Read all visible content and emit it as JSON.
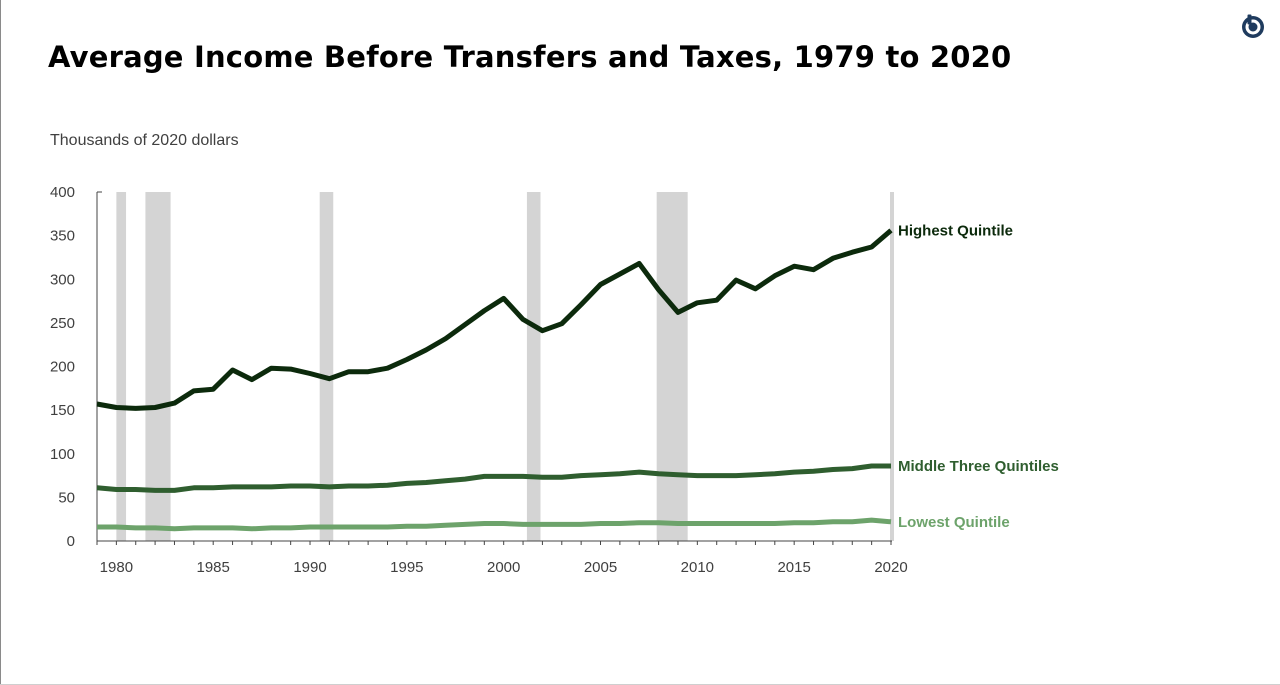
{
  "header": {
    "title": "Average Income Before Transfers and Taxes, 1979 to 2020",
    "logo_icon": "cbo-logo-icon"
  },
  "colors": {
    "highest": "#0c2a0c",
    "middle": "#2f5e2f",
    "lowest": "#6da36b",
    "recession": "#d4d4d4",
    "axis": "#444444"
  },
  "chart_data": {
    "type": "line",
    "title": "Average Income Before Transfers and Taxes, 1979 to 2020",
    "ylabel": "Thousands of 2020 dollars",
    "xlabel": "",
    "xlim": [
      1979,
      2020
    ],
    "ylim": [
      0,
      400
    ],
    "yticks": [
      0,
      50,
      100,
      150,
      200,
      250,
      300,
      350,
      400
    ],
    "xticks": [
      1980,
      1985,
      1990,
      1995,
      2000,
      2005,
      2010,
      2015,
      2020
    ],
    "grid": false,
    "legend": "direct labels at right end of each line",
    "recessions": [
      {
        "start": 1980.0,
        "end": 1980.5
      },
      {
        "start": 1981.5,
        "end": 1982.8
      },
      {
        "start": 1990.5,
        "end": 1991.2
      },
      {
        "start": 2001.2,
        "end": 2001.9
      },
      {
        "start": 2007.9,
        "end": 2009.5
      }
    ],
    "x": [
      1979,
      1980,
      1981,
      1982,
      1983,
      1984,
      1985,
      1986,
      1987,
      1988,
      1989,
      1990,
      1991,
      1992,
      1993,
      1994,
      1995,
      1996,
      1997,
      1998,
      1999,
      2000,
      2001,
      2002,
      2003,
      2004,
      2005,
      2006,
      2007,
      2008,
      2009,
      2010,
      2011,
      2012,
      2013,
      2014,
      2015,
      2016,
      2017,
      2018,
      2019,
      2020
    ],
    "series": [
      {
        "name": "Highest Quintile",
        "values": [
          157,
          153,
          152,
          153,
          158,
          172,
          174,
          196,
          185,
          198,
          197,
          192,
          186,
          194,
          194,
          198,
          208,
          219,
          232,
          248,
          264,
          278,
          254,
          241,
          249,
          271,
          294,
          306,
          318,
          288,
          262,
          273,
          276,
          299,
          289,
          304,
          315,
          311,
          324,
          331,
          337,
          356
        ]
      },
      {
        "name": "Middle Three Quintiles",
        "values": [
          61,
          59,
          59,
          58,
          58,
          61,
          61,
          62,
          62,
          62,
          63,
          63,
          62,
          63,
          63,
          64,
          66,
          67,
          69,
          71,
          74,
          74,
          74,
          73,
          73,
          75,
          76,
          77,
          79,
          77,
          76,
          75,
          75,
          75,
          76,
          77,
          79,
          80,
          82,
          83,
          86,
          86
        ]
      },
      {
        "name": "Lowest Quintile",
        "values": [
          16,
          16,
          15,
          15,
          14,
          15,
          15,
          15,
          14,
          15,
          15,
          16,
          16,
          16,
          16,
          16,
          17,
          17,
          18,
          19,
          20,
          20,
          19,
          19,
          19,
          19,
          20,
          20,
          21,
          21,
          20,
          20,
          20,
          20,
          20,
          20,
          21,
          21,
          22,
          22,
          24,
          22
        ]
      }
    ]
  }
}
